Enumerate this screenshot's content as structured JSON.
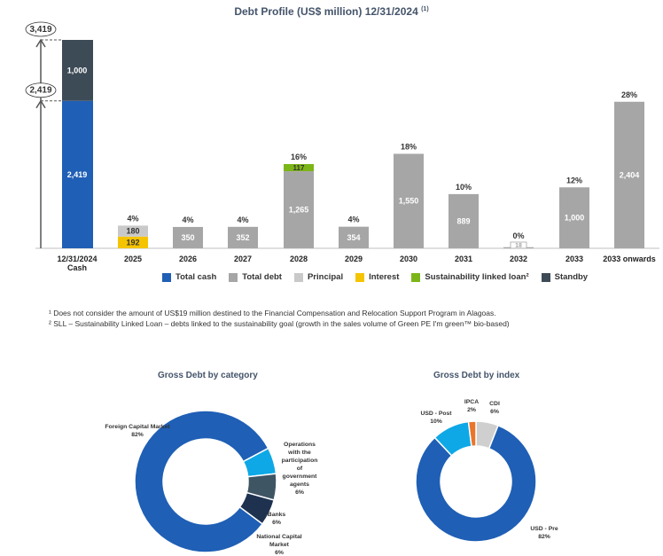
{
  "title": "Debt Profile (US$ million) 12/31/2024",
  "title_sup": "(1)",
  "colors": {
    "total_cash": "#1f5fb5",
    "total_debt": "#a6a6a6",
    "principal": "#c9c9c9",
    "interest": "#f5c400",
    "sll": "#7cb518",
    "standby": "#3d4b57",
    "pie_blue": "#1f5fb5",
    "pie_light": "#0ea8e6",
    "pie_dark": "#1e3250",
    "pie_slate": "#3e5564",
    "pie_gray": "#cfcfcf",
    "pie_orange": "#e9762b"
  },
  "chart_data": [
    {
      "type": "bar",
      "title": "Debt Profile (US$ million) 12/31/2024",
      "categories": [
        "12/31/2024\nCash",
        "2025",
        "2026",
        "2027",
        "2028",
        "2029",
        "2030",
        "2031",
        "2032",
        "2033",
        "2033 onwards"
      ],
      "cash": {
        "total_cash": 2419,
        "standby": 1000,
        "total": 3419,
        "marker_total": "3,419",
        "marker_cash": "2,419"
      },
      "series": [
        {
          "name": "Total debt",
          "values": [
            null,
            null,
            350,
            352,
            1265,
            354,
            1550,
            889,
            18,
            1000,
            2404
          ]
        },
        {
          "name": "Principal",
          "values": [
            null,
            180,
            null,
            null,
            null,
            null,
            null,
            null,
            null,
            null,
            null
          ]
        },
        {
          "name": "Interest",
          "values": [
            null,
            192,
            null,
            null,
            null,
            null,
            null,
            null,
            null,
            null,
            null
          ]
        },
        {
          "name": "Sustainability linked loan²",
          "values": [
            null,
            null,
            null,
            null,
            117,
            null,
            null,
            null,
            null,
            null,
            null
          ]
        }
      ],
      "percent_labels": [
        "",
        "4%",
        "4%",
        "4%",
        "16%",
        "4%",
        "18%",
        "10%",
        "0%",
        "12%",
        "28%"
      ],
      "value_labels": [
        [
          "2,419",
          "1,000"
        ],
        [
          "192",
          "180"
        ],
        [
          "350"
        ],
        [
          "352"
        ],
        [
          "1,265",
          "117"
        ],
        [
          "354"
        ],
        [
          "1,550"
        ],
        [
          "889"
        ],
        [
          "18"
        ],
        [
          "1,000"
        ],
        [
          "2,404"
        ]
      ],
      "ylim": [
        0,
        3419
      ]
    },
    {
      "type": "pie",
      "title": "Gross Debt by category",
      "slices": [
        {
          "label": "Foreign Capital Market",
          "pct": "82%",
          "value": 82,
          "color": "#1f5fb5"
        },
        {
          "label": "Operations with the participation of government agents",
          "pct": "6%",
          "value": 6,
          "color": "#0ea8e6"
        },
        {
          "label": "Banks",
          "pct": "6%",
          "value": 6,
          "color": "#3e5564"
        },
        {
          "label": "National Capital Market",
          "pct": "6%",
          "value": 6,
          "color": "#1e3250"
        }
      ]
    },
    {
      "type": "pie",
      "title": "Gross Debt by index",
      "slices": [
        {
          "label": "USD - Pre",
          "pct": "82%",
          "value": 82,
          "color": "#1f5fb5"
        },
        {
          "label": "USD - Post",
          "pct": "10%",
          "value": 10,
          "color": "#0ea8e6"
        },
        {
          "label": "IPCA",
          "pct": "2%",
          "value": 2,
          "color": "#e9762b"
        },
        {
          "label": "CDI",
          "pct": "6%",
          "value": 6,
          "color": "#cfcfcf"
        }
      ]
    }
  ],
  "legend": [
    "Total cash",
    "Total debt",
    "Principal",
    "Interest",
    "Sustainability linked loan²",
    "Standby"
  ],
  "footnotes": [
    "¹ Does not consider the amount of US$19 million destined to the Financial Compensation and Relocation Support Program in Alagoas.",
    "² SLL – Sustainability Linked Loan – debts linked to the sustainability goal (growth in the sales volume of Green PE I'm green™ bio-based)"
  ],
  "pie_labels": {
    "cat_foreign": [
      "Foreign Capital Market",
      "82%"
    ],
    "cat_ops": [
      "Operations",
      "with the",
      "participation",
      "of",
      "government",
      "agents",
      "6%"
    ],
    "cat_banks": [
      "Banks",
      "6%"
    ],
    "cat_national": [
      "National Capital",
      "Market",
      "6%"
    ],
    "idx_post": [
      "USD - Post",
      "10%"
    ],
    "idx_ipca": [
      "IPCA",
      "2%"
    ],
    "idx_cdi": [
      "CDI",
      "6%"
    ],
    "idx_pre": [
      "USD - Pre",
      "82%"
    ]
  }
}
